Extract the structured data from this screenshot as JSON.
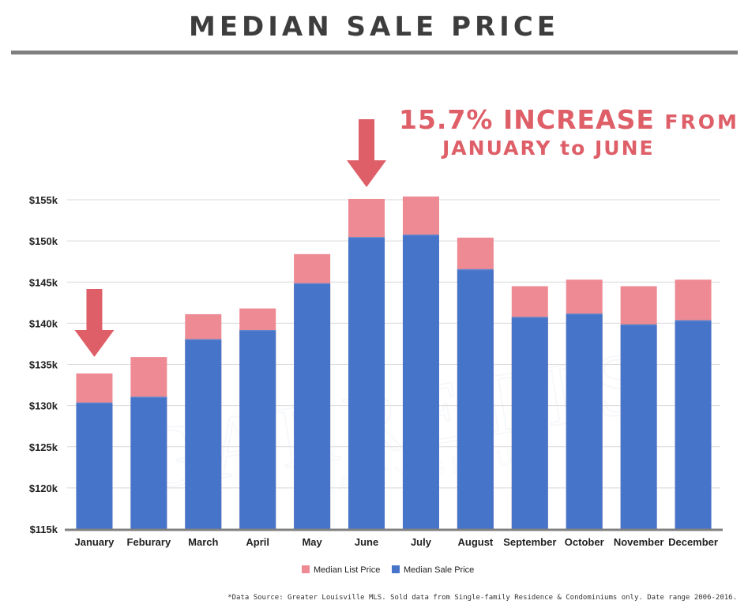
{
  "title": "MEDIAN SALE PRICE",
  "callout": {
    "line1_big": "15.7% INCREASE",
    "line1_small": "FROM",
    "line2": "JANUARY to JUNE"
  },
  "watermark": {
    "line1": "GARRETTS",
    "line2": "REALTY GROUP"
  },
  "source_note": "*Data Source: Greater Louisville MLS. Sold data from Single-family Residence & Condominiums only. Date range 2006-2016.",
  "colors": {
    "list": "#ee8a93",
    "sale": "#4674c8",
    "arrow": "#de5f68",
    "axis": "#808080"
  },
  "chart_data": {
    "type": "bar",
    "stacked": false,
    "overlapped": true,
    "categories": [
      "January",
      "Feburary",
      "March",
      "April",
      "May",
      "June",
      "July",
      "August",
      "September",
      "October",
      "November",
      "December"
    ],
    "series": [
      {
        "name": "Median List Price",
        "values": [
          133900,
          135900,
          141100,
          141800,
          148400,
          155100,
          155400,
          150400,
          144500,
          145300,
          144500,
          145300
        ]
      },
      {
        "name": "Median Sale Price",
        "values": [
          130300,
          131000,
          138000,
          139100,
          144800,
          150400,
          150700,
          146500,
          140700,
          141100,
          139800,
          140300
        ]
      }
    ],
    "y_ticks": [
      "$115k",
      "$120k",
      "$125k",
      "$130k",
      "$135k",
      "$140k",
      "$145k",
      "$150k",
      "$155k"
    ],
    "ylim": [
      115000,
      155000
    ],
    "y_tick_step": 5000,
    "grid": true,
    "legend": "bottom",
    "arrows_at": [
      "January",
      "June"
    ]
  }
}
